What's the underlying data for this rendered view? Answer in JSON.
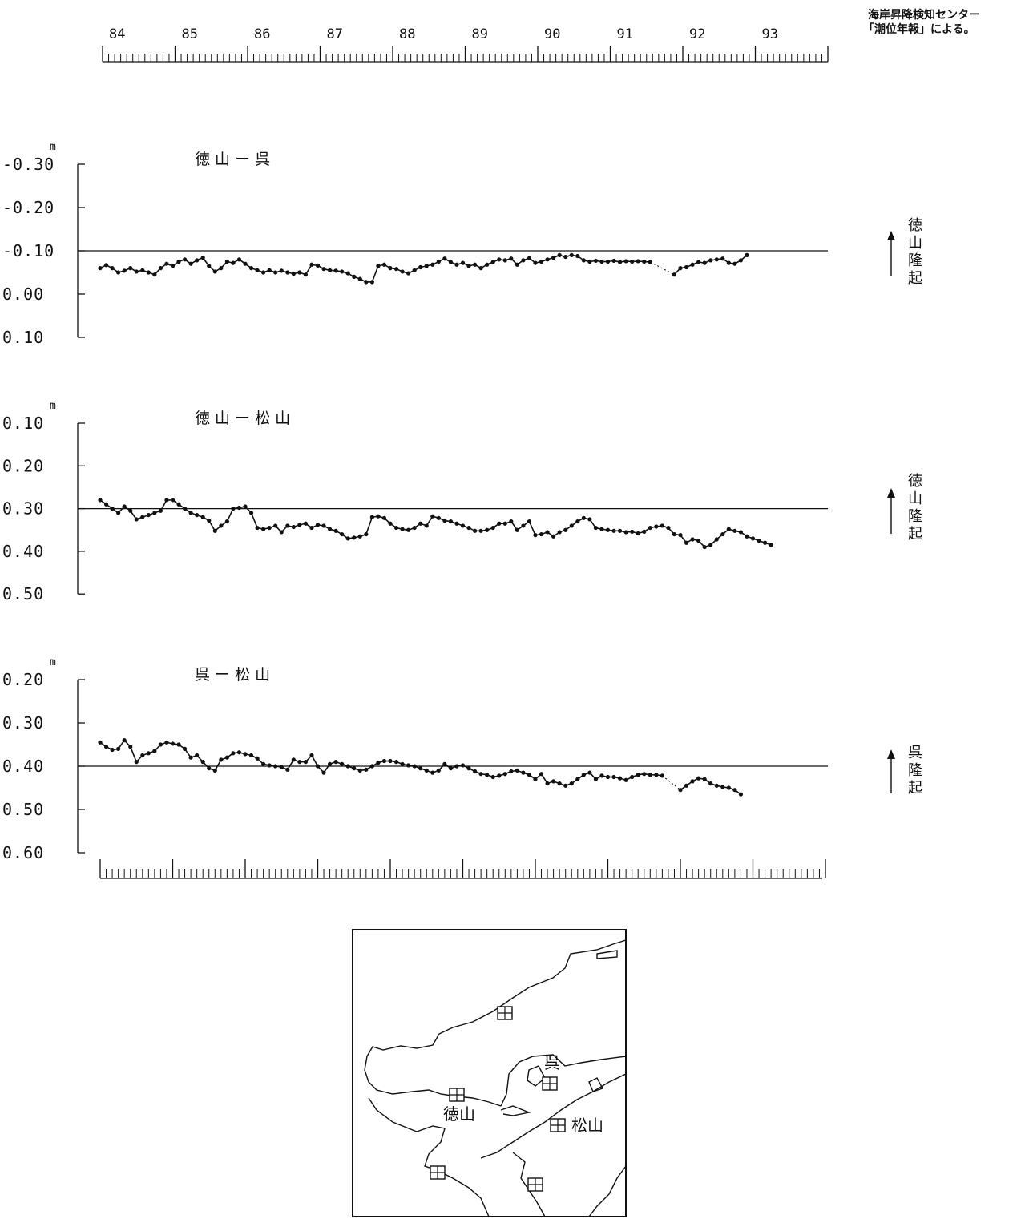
{
  "source_note": [
    "海岸昇降検知センター",
    "「潮位年報」による。"
  ],
  "top_axis": {
    "year_labels": [
      "84",
      "85",
      "86",
      "87",
      "88",
      "89",
      "90",
      "91",
      "92",
      "93"
    ]
  },
  "unit": "m",
  "chart_data": [
    {
      "type": "line",
      "title": "徳 山 ー 呉",
      "ylabel": "m",
      "yticks": [
        "-0.30",
        "-0.20",
        "-0.10",
        "0.00",
        "0.10"
      ],
      "ylim": [
        -0.3,
        0.1
      ],
      "reference_line": -0.1,
      "annotation": [
        "徳",
        "山",
        "隆",
        "起"
      ],
      "x_start": 1984.0,
      "x_step_months": 1,
      "series": [
        {
          "values": [
            -0.06,
            -0.067,
            -0.06,
            -0.05,
            -0.054,
            -0.06,
            -0.052,
            -0.055,
            -0.05,
            -0.045,
            -0.06,
            -0.07,
            -0.065,
            -0.075,
            -0.08,
            -0.07,
            -0.078,
            -0.084,
            -0.065,
            -0.052,
            -0.06,
            -0.075,
            -0.072,
            -0.08,
            -0.07,
            -0.06,
            -0.055,
            -0.05,
            -0.055,
            -0.05,
            -0.054,
            -0.05,
            -0.047,
            -0.05,
            -0.045,
            -0.068,
            -0.066,
            -0.058,
            -0.055,
            -0.054,
            -0.052,
            -0.048,
            -0.04,
            -0.035,
            -0.028,
            -0.028,
            -0.065,
            -0.068,
            -0.06,
            -0.058,
            -0.052,
            -0.048,
            -0.055,
            -0.062,
            -0.065,
            -0.068,
            -0.075,
            -0.082,
            -0.074,
            -0.068,
            -0.072,
            -0.065,
            -0.068,
            -0.06,
            -0.068,
            -0.074,
            -0.08,
            -0.078,
            -0.082,
            -0.068,
            -0.078,
            -0.083,
            -0.072,
            -0.075,
            -0.08,
            -0.084,
            -0.09,
            -0.086,
            -0.09,
            -0.088,
            -0.078,
            -0.075,
            -0.077,
            -0.075,
            -0.075,
            -0.077,
            -0.074,
            -0.076,
            -0.075,
            -0.076,
            -0.075,
            -0.074,
            null,
            null,
            null,
            -0.045,
            -0.06,
            -0.062,
            -0.068,
            -0.074,
            -0.072,
            -0.078,
            -0.08,
            -0.082,
            -0.072,
            -0.07,
            -0.078,
            -0.09
          ]
        }
      ]
    },
    {
      "type": "line",
      "title": "徳 山 ー 松 山",
      "ylabel": "m",
      "yticks": [
        "0.10",
        "0.20",
        "0.30",
        "0.40",
        "0.50"
      ],
      "ylim": [
        0.1,
        0.5
      ],
      "reference_line": 0.3,
      "annotation": [
        "徳",
        "山",
        "隆",
        "起"
      ],
      "x_start": 1984.0,
      "x_step_months": 1,
      "series": [
        {
          "values": [
            0.28,
            0.29,
            0.3,
            0.31,
            0.295,
            0.305,
            0.325,
            0.32,
            0.315,
            0.31,
            0.305,
            0.28,
            0.28,
            0.29,
            0.3,
            0.31,
            0.315,
            0.32,
            0.328,
            0.352,
            0.34,
            0.33,
            0.3,
            0.298,
            0.295,
            0.31,
            0.345,
            0.348,
            0.345,
            0.34,
            0.355,
            0.34,
            0.343,
            0.338,
            0.335,
            0.345,
            0.338,
            0.34,
            0.348,
            0.352,
            0.36,
            0.37,
            0.368,
            0.365,
            0.36,
            0.32,
            0.318,
            0.322,
            0.335,
            0.345,
            0.348,
            0.35,
            0.345,
            0.335,
            0.34,
            0.318,
            0.322,
            0.328,
            0.33,
            0.335,
            0.34,
            0.345,
            0.352,
            0.352,
            0.35,
            0.345,
            0.335,
            0.335,
            0.33,
            0.35,
            0.34,
            0.33,
            0.362,
            0.36,
            0.355,
            0.365,
            0.355,
            0.35,
            0.34,
            0.33,
            0.322,
            0.325,
            0.345,
            0.348,
            0.35,
            0.352,
            0.352,
            0.355,
            0.354,
            0.358,
            0.354,
            0.345,
            0.342,
            0.34,
            0.345,
            0.36,
            0.362,
            0.38,
            0.372,
            0.375,
            0.39,
            0.385,
            0.372,
            0.36,
            0.348,
            0.352,
            0.355,
            0.365,
            0.37,
            0.375,
            0.38,
            0.385
          ]
        }
      ]
    },
    {
      "type": "line",
      "title": "呉 ー 松 山",
      "ylabel": "m",
      "yticks": [
        "0.20",
        "0.30",
        "0.40",
        "0.50",
        "0.60"
      ],
      "ylim": [
        0.2,
        0.6
      ],
      "reference_line": 0.4,
      "annotation": [
        "呉",
        "隆",
        "起"
      ],
      "x_start": 1984.0,
      "x_step_months": 1,
      "series": [
        {
          "values": [
            0.345,
            0.355,
            0.362,
            0.36,
            0.34,
            0.355,
            0.39,
            0.375,
            0.37,
            0.365,
            0.35,
            0.345,
            0.348,
            0.35,
            0.36,
            0.38,
            0.375,
            0.39,
            0.405,
            0.41,
            0.385,
            0.38,
            0.37,
            0.368,
            0.372,
            0.375,
            0.382,
            0.395,
            0.398,
            0.4,
            0.402,
            0.408,
            0.385,
            0.39,
            0.39,
            0.375,
            0.4,
            0.415,
            0.395,
            0.39,
            0.395,
            0.4,
            0.405,
            0.41,
            0.408,
            0.4,
            0.392,
            0.388,
            0.388,
            0.39,
            0.395,
            0.398,
            0.4,
            0.405,
            0.41,
            0.415,
            0.41,
            0.395,
            0.405,
            0.4,
            0.398,
            0.405,
            0.412,
            0.418,
            0.42,
            0.425,
            0.422,
            0.418,
            0.412,
            0.41,
            0.415,
            0.42,
            0.43,
            0.418,
            0.44,
            0.435,
            0.44,
            0.445,
            0.44,
            0.43,
            0.42,
            0.415,
            0.43,
            0.422,
            0.425,
            0.425,
            0.428,
            0.432,
            0.425,
            0.42,
            0.418,
            0.42,
            0.42,
            0.422,
            null,
            null,
            0.455,
            0.445,
            0.435,
            0.428,
            0.43,
            0.44,
            0.445,
            0.448,
            0.45,
            0.455,
            0.465
          ]
        }
      ]
    }
  ],
  "map": {
    "labels": {
      "kure": "呉",
      "tokuyama": "徳山",
      "matsuyama": "松山"
    }
  }
}
